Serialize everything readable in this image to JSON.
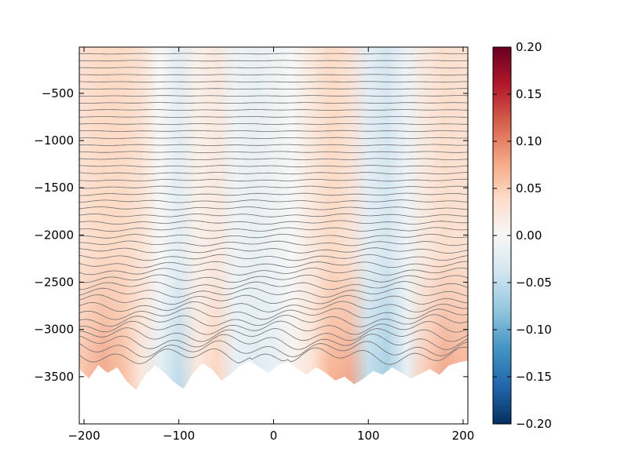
{
  "chart_data": {
    "type": "heatmap",
    "title": "",
    "xlabel": "",
    "ylabel": "",
    "xlim": [
      -205,
      205
    ],
    "ylim": [
      -4000,
      -10
    ],
    "x_ticks": [
      -200,
      -100,
      0,
      100,
      200
    ],
    "y_ticks": [
      -500,
      -1000,
      -1500,
      -2000,
      -2500,
      -3000,
      -3500
    ],
    "x_tick_labels": [
      "−200",
      "−100",
      "0",
      "100",
      "200"
    ],
    "y_tick_labels": [
      "−500",
      "−1000",
      "−1500",
      "−2000",
      "−2500",
      "−3000",
      "−3500"
    ],
    "colorbar": {
      "colormap": "RdBu_r",
      "range": [
        -0.2,
        0.2
      ],
      "ticks": [
        0.2,
        0.15,
        0.1,
        0.05,
        0.0,
        -0.05,
        -0.1,
        -0.15,
        -0.2
      ],
      "tick_labels": [
        "0.20",
        "0.15",
        "0.10",
        "0.05",
        "0.00",
        "−0.05",
        "−0.10",
        "−0.15",
        "−0.20"
      ]
    },
    "field": {
      "x": [
        -205,
        -180,
        -160,
        -140,
        -120,
        -100,
        -80,
        -60,
        -40,
        -20,
        0,
        20,
        40,
        60,
        80,
        100,
        120,
        140,
        160,
        180,
        205
      ],
      "upper_values": [
        0.03,
        0.04,
        0.04,
        0.03,
        0.0,
        -0.02,
        0.01,
        0.02,
        -0.01,
        -0.015,
        -0.01,
        0.0,
        0.02,
        0.04,
        0.03,
        -0.02,
        -0.035,
        -0.01,
        0.02,
        0.035,
        0.03
      ],
      "bottom_values": [
        0.06,
        0.09,
        0.07,
        0.02,
        -0.03,
        -0.06,
        0.03,
        0.05,
        -0.02,
        -0.03,
        -0.02,
        0.01,
        0.03,
        0.08,
        0.09,
        -0.06,
        -0.08,
        -0.02,
        0.06,
        0.09,
        0.08
      ]
    },
    "contour_levels": {
      "count": 44,
      "top_depth": -80,
      "bottom_depth": -3280,
      "color": "#6f6f6f"
    },
    "bottom_depth": {
      "x": [
        -205,
        -195,
        -185,
        -175,
        -165,
        -155,
        -145,
        -135,
        -125,
        -115,
        -105,
        -95,
        -85,
        -75,
        -65,
        -55,
        -45,
        -35,
        -25,
        -15,
        -5,
        5,
        15,
        25,
        35,
        45,
        55,
        65,
        75,
        85,
        95,
        105,
        115,
        125,
        135,
        145,
        155,
        165,
        175,
        185,
        195,
        205
      ],
      "y": [
        -3420,
        -3520,
        -3380,
        -3460,
        -3400,
        -3550,
        -3640,
        -3480,
        -3380,
        -3460,
        -3560,
        -3630,
        -3460,
        -3360,
        -3420,
        -3540,
        -3470,
        -3380,
        -3330,
        -3400,
        -3460,
        -3380,
        -3350,
        -3420,
        -3480,
        -3400,
        -3460,
        -3540,
        -3500,
        -3580,
        -3520,
        -3440,
        -3480,
        -3400,
        -3460,
        -3520,
        -3470,
        -3420,
        -3480,
        -3380,
        -3350,
        -3330
      ]
    }
  }
}
